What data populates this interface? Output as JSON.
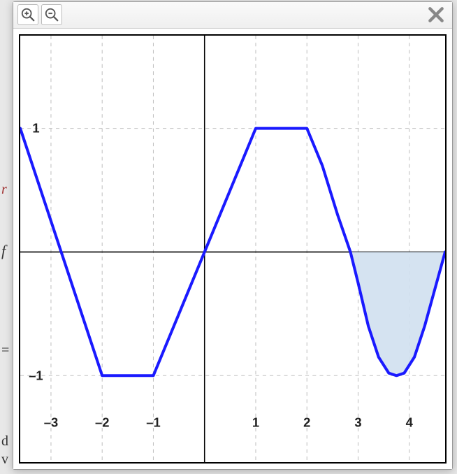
{
  "modal": {
    "toolbar": {
      "zoom_in_label": "Zoom In",
      "zoom_out_label": "Zoom Out",
      "close_label": "Close"
    }
  },
  "chart": {
    "type": "line",
    "background_color": "#ffffff",
    "border_color": "#000000",
    "border_width": 2,
    "xlim": [
      -3.6,
      4.7
    ],
    "ylim": [
      -1.7,
      1.75
    ],
    "xtick_step": 1,
    "ytick_step": 1,
    "xticks": [
      -3,
      -2,
      -1,
      1,
      2,
      3,
      4
    ],
    "yticks": [
      -1,
      1
    ],
    "tick_font_size": 18,
    "tick_font_weight": "bold",
    "tick_color": "#222222",
    "grid_color": "#bfbfbf",
    "grid_dash": "5,5",
    "grid_width": 1,
    "axis_color": "#000000",
    "axis_width": 1.5,
    "line_color": "#1a1aff",
    "line_width": 4,
    "fill_color": "#d0e0f0",
    "fill_opacity": 0.9,
    "curve_points": [
      [
        -3.6,
        1.0
      ],
      [
        -2.0,
        -1.0
      ],
      [
        -1.0,
        -1.0
      ],
      [
        0.0,
        0.0
      ],
      [
        1.0,
        1.0
      ],
      [
        2.0,
        1.0
      ],
      [
        2.3,
        0.7
      ],
      [
        2.6,
        0.3
      ],
      [
        2.85,
        0.0
      ],
      [
        3.0,
        -0.25
      ],
      [
        3.2,
        -0.6
      ],
      [
        3.4,
        -0.85
      ],
      [
        3.6,
        -0.98
      ],
      [
        3.75,
        -1.0
      ],
      [
        3.9,
        -0.98
      ],
      [
        4.1,
        -0.85
      ],
      [
        4.3,
        -0.6
      ],
      [
        4.5,
        -0.3
      ],
      [
        4.7,
        0.0
      ]
    ],
    "shaded_region": {
      "x_start": 2.85,
      "x_end": 4.7,
      "y_base": 0.0
    }
  },
  "background_fragments": {
    "r_char": "r",
    "f_char": "f",
    "eq_char": "=",
    "d_char": "d",
    "v_char": "v"
  }
}
